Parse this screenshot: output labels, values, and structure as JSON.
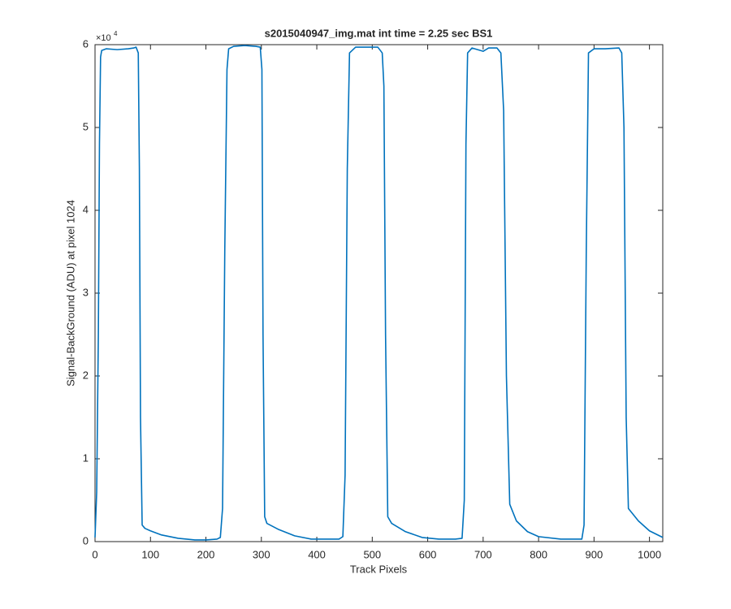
{
  "chart_data": {
    "type": "line",
    "title": "s2015040947_img.mat int time = 2.25 sec   BS1",
    "xlabel": "Track Pixels",
    "ylabel": "Signal-BackGround (ADU) at pixel 1024",
    "y_multiplier": "×10",
    "y_multiplier_exponent": "4",
    "xlim": [
      0,
      1024
    ],
    "ylim": [
      0,
      6
    ],
    "xticks": [
      0,
      100,
      200,
      300,
      400,
      500,
      600,
      700,
      800,
      900,
      1000
    ],
    "yticks": [
      0,
      1,
      2,
      3,
      4,
      5,
      6
    ],
    "series": [
      {
        "color": "#0072bd",
        "x": [
          0,
          3,
          6,
          8,
          10,
          12,
          20,
          40,
          60,
          70,
          74,
          78,
          80,
          82,
          85,
          90,
          100,
          120,
          150,
          180,
          200,
          220,
          226,
          230,
          234,
          238,
          241,
          250,
          270,
          290,
          298,
          301,
          303,
          306,
          310,
          330,
          360,
          390,
          420,
          440,
          447,
          451,
          455,
          459,
          470,
          490,
          510,
          518,
          521,
          524,
          528,
          535,
          560,
          590,
          620,
          650,
          662,
          666,
          669,
          672,
          680,
          700,
          710,
          725,
          732,
          737,
          742,
          748,
          760,
          780,
          800,
          840,
          878,
          882,
          886,
          890,
          900,
          920,
          945,
          950,
          954,
          958,
          962,
          980,
          1000,
          1024
        ],
        "values": [
          0.05,
          0.6,
          2.5,
          4.8,
          5.85,
          5.93,
          5.95,
          5.94,
          5.95,
          5.96,
          5.97,
          5.9,
          4.5,
          1.5,
          0.2,
          0.16,
          0.13,
          0.08,
          0.04,
          0.02,
          0.02,
          0.03,
          0.05,
          0.4,
          3.5,
          5.7,
          5.95,
          5.98,
          5.99,
          5.98,
          5.97,
          5.7,
          2.5,
          0.3,
          0.22,
          0.15,
          0.07,
          0.03,
          0.03,
          0.03,
          0.06,
          0.8,
          4.5,
          5.9,
          5.97,
          5.97,
          5.97,
          5.9,
          5.5,
          2.5,
          0.3,
          0.22,
          0.12,
          0.05,
          0.03,
          0.03,
          0.04,
          0.5,
          4.8,
          5.9,
          5.96,
          5.92,
          5.96,
          5.96,
          5.9,
          5.2,
          2.0,
          0.45,
          0.25,
          0.12,
          0.06,
          0.03,
          0.03,
          0.2,
          3.5,
          5.9,
          5.95,
          5.95,
          5.96,
          5.9,
          5.0,
          1.5,
          0.4,
          0.25,
          0.13,
          0.05
        ]
      }
    ]
  }
}
